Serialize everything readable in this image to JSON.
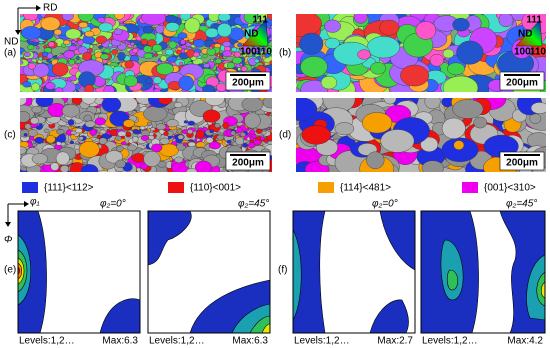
{
  "axes": {
    "rd": "RD",
    "nd": "ND"
  },
  "panels": [
    {
      "label": "(a)",
      "scale": "200μm",
      "key": {
        "nd": "ND",
        "k111": "111",
        "k100": "100",
        "k110": "110"
      }
    },
    {
      "label": "(b)",
      "scale": "200μm",
      "key": {
        "nd": "ND",
        "k111": "111",
        "k100": "100",
        "k110": "110"
      }
    },
    {
      "label": "(c)",
      "scale": "200μm"
    },
    {
      "label": "(d)",
      "scale": "200μm"
    }
  ],
  "legend": [
    {
      "name": "{111}<112>",
      "color": "#1f2fe0"
    },
    {
      "name": "{110}<001>",
      "color": "#ee1111"
    },
    {
      "name": "{114}<481>",
      "color": "#f5a000"
    },
    {
      "name": "{001}<310>",
      "color": "#ee00ee"
    }
  ],
  "odf": {
    "phi1": "φ₁",
    "Phi": "Φ",
    "groups": [
      {
        "label": "(e)",
        "sections": [
          {
            "title": "φ₂=0°",
            "levels": "Levels:1,2…",
            "max": "Max:6.3"
          },
          {
            "title": "φ₂=45°",
            "levels": "Levels:1,2…",
            "max": "Max:6.3"
          }
        ]
      },
      {
        "label": "(f)",
        "sections": [
          {
            "title": "φ₂=0°",
            "levels": "Levels:1,2…",
            "max": "Max:2.7"
          },
          {
            "title": "φ₂=45°",
            "levels": "Levels:1,2…",
            "max": "Max:4.2"
          }
        ]
      }
    ]
  }
}
